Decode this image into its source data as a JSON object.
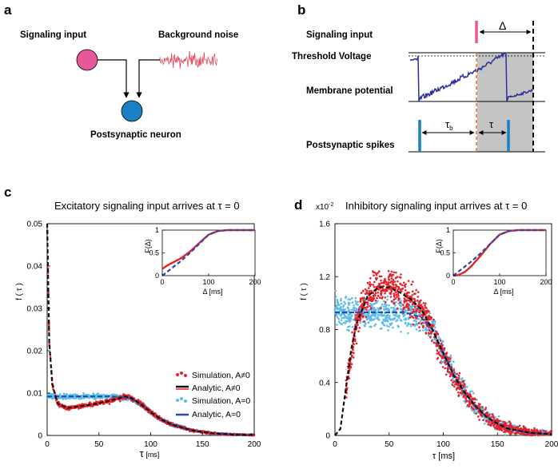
{
  "panel_a": {
    "letter": "a",
    "signaling_input": "Signaling input",
    "background_noise": "Background noise",
    "postsynaptic_neuron": "Postsynaptic neuron"
  },
  "panel_b": {
    "letter": "b",
    "signaling_input": "Signaling input",
    "threshold_voltage": "Threshold Voltage",
    "membrane_potential": "Membrane potential",
    "postsynaptic_spikes": "Postsynaptic spikes",
    "delta": "Δ",
    "tau": "τ",
    "tau_b_main": "τ",
    "tau_b_sub": "b"
  },
  "colors": {
    "pink": "#e8579a",
    "blue": "#1a7fc4",
    "noise_red": "#e8334a",
    "trace": "#2b2f9a",
    "shade": "#c4c4c4",
    "orange": "#f07020",
    "sim_red": "#e8202a",
    "sim_cyan": "#5bbde8",
    "analytic_blue": "#2a4aa8"
  },
  "panel_c": {
    "letter": "c",
    "title": "Excitatory signaling input arrives at τ = 0",
    "ylabel": "f ( τ )",
    "xlabel_main": "τ",
    "xlabel_unit": " [ms]",
    "yticks": [
      "0.05",
      "0.04",
      "0.03",
      "0.02",
      "0.01",
      "0"
    ],
    "xticks": [
      "0",
      "50",
      "100",
      "150",
      "200"
    ],
    "legend": [
      "Simulation, A≠0",
      "Analytic, A≠0",
      "Simulation, A=0",
      "Analytic, A=0"
    ],
    "inset": {
      "ylabel": "F(Δ)",
      "xlabel": "Δ [ms]",
      "yticks": [
        "1",
        "0.5",
        "0"
      ],
      "xticks": [
        "0",
        "100",
        "200"
      ]
    }
  },
  "panel_d": {
    "letter": "d",
    "scale": "x10",
    "scale_exp": "-2",
    "title": "Inhibitory signaling input arrives at τ = 0",
    "ylabel": "f ( τ )",
    "xlabel": "τ [ms]",
    "yticks": [
      "1.6",
      "1.2",
      "0.8",
      "0.4",
      "0"
    ],
    "xticks": [
      "0",
      "50",
      "100",
      "150",
      "200"
    ],
    "inset": {
      "ylabel": "F(Δ)",
      "xlabel": "Δ [ms]",
      "yticks": [
        "1",
        "0.5",
        "0"
      ],
      "xticks": [
        "0",
        "100",
        "200"
      ]
    }
  },
  "chart_data": [
    {
      "type": "scatter",
      "title": "Excitatory signaling input arrives at τ = 0",
      "xlabel": "τ [ms]",
      "ylabel": "f ( τ )",
      "xlim": [
        0,
        200
      ],
      "ylim": [
        0,
        0.05
      ],
      "series": [
        {
          "name": "Simulation, A≠0",
          "kind": "scatter",
          "x": [
            0,
            2,
            5,
            10,
            20,
            30,
            40,
            50,
            60,
            70,
            75,
            80,
            90,
            100,
            110,
            120,
            140,
            160,
            180,
            200
          ],
          "y": [
            0.05,
            0.022,
            0.012,
            0.0075,
            0.0065,
            0.0068,
            0.0072,
            0.0076,
            0.0082,
            0.0088,
            0.0092,
            0.009,
            0.0075,
            0.0055,
            0.0038,
            0.0026,
            0.0012,
            0.0005,
            0.0002,
            0.0001
          ]
        },
        {
          "name": "Analytic, A≠0",
          "kind": "line",
          "x": [
            0,
            2,
            5,
            10,
            20,
            30,
            40,
            50,
            60,
            70,
            75,
            80,
            90,
            100,
            110,
            120,
            140,
            160,
            180,
            200
          ],
          "y": [
            0.05,
            0.022,
            0.012,
            0.0075,
            0.0065,
            0.0068,
            0.0072,
            0.0076,
            0.0082,
            0.0088,
            0.0092,
            0.009,
            0.0075,
            0.0055,
            0.0038,
            0.0026,
            0.0012,
            0.0005,
            0.0002,
            0.0001
          ]
        },
        {
          "name": "Simulation, A=0",
          "kind": "scatter",
          "x": [
            0,
            10,
            20,
            30,
            40,
            50,
            60,
            70,
            80,
            90,
            100,
            110,
            120,
            140,
            160,
            180,
            200
          ],
          "y": [
            0.0092,
            0.0092,
            0.0092,
            0.0092,
            0.0092,
            0.0092,
            0.0092,
            0.0091,
            0.0088,
            0.0075,
            0.0055,
            0.0038,
            0.0026,
            0.0012,
            0.0005,
            0.0002,
            0.0001
          ]
        },
        {
          "name": "Analytic, A=0",
          "kind": "line",
          "x": [
            0,
            10,
            20,
            30,
            40,
            50,
            60,
            70,
            80,
            90,
            100,
            110,
            120,
            140,
            160,
            180,
            200
          ],
          "y": [
            0.0092,
            0.0092,
            0.0092,
            0.0092,
            0.0092,
            0.0092,
            0.0092,
            0.0091,
            0.0088,
            0.0075,
            0.0055,
            0.0038,
            0.0026,
            0.0012,
            0.0005,
            0.0002,
            0.0001
          ]
        }
      ],
      "inset": {
        "type": "line",
        "xlabel": "Δ [ms]",
        "ylabel": "F(Δ)",
        "xlim": [
          0,
          200
        ],
        "ylim": [
          0,
          1
        ],
        "series": [
          {
            "name": "A≠0",
            "x": [
              0,
              10,
              25,
              40,
              60,
              80,
              100,
              120,
              140,
              200
            ],
            "y": [
              0.15,
              0.22,
              0.3,
              0.38,
              0.53,
              0.72,
              0.9,
              0.98,
              1.0,
              1.0
            ]
          },
          {
            "name": "A=0",
            "x": [
              0,
              10,
              25,
              40,
              60,
              80,
              100,
              120,
              140,
              200
            ],
            "y": [
              0.0,
              0.08,
              0.2,
              0.32,
              0.5,
              0.7,
              0.9,
              0.98,
              1.0,
              1.0
            ]
          }
        ]
      }
    },
    {
      "type": "scatter",
      "title": "Inhibitory signaling input arrives at τ = 0",
      "xlabel": "τ [ms]",
      "ylabel": "f ( τ ) (x10^-2)",
      "xlim": [
        0,
        200
      ],
      "ylim": [
        0,
        1.6
      ],
      "series": [
        {
          "name": "Simulation, A≠0",
          "kind": "scatter",
          "x": [
            10,
            20,
            30,
            40,
            50,
            60,
            70,
            80,
            90,
            100,
            110,
            120,
            130,
            140,
            150,
            160,
            180,
            200
          ],
          "y": [
            0.35,
            0.85,
            1.05,
            1.12,
            1.12,
            1.08,
            1.03,
            0.95,
            0.8,
            0.62,
            0.45,
            0.32,
            0.22,
            0.14,
            0.09,
            0.05,
            0.02,
            0.01
          ]
        },
        {
          "name": "Analytic, A≠0",
          "kind": "line",
          "x": [
            0,
            5,
            10,
            15,
            20,
            30,
            40,
            50,
            60,
            70,
            80,
            90,
            100,
            110,
            120,
            130,
            140,
            150,
            160,
            180,
            200
          ],
          "y": [
            0.0,
            0.05,
            0.35,
            0.65,
            0.85,
            1.05,
            1.12,
            1.12,
            1.08,
            1.03,
            0.95,
            0.8,
            0.62,
            0.45,
            0.32,
            0.22,
            0.14,
            0.09,
            0.05,
            0.02,
            0.01
          ]
        },
        {
          "name": "Simulation, A=0",
          "kind": "scatter",
          "x": [
            0,
            10,
            20,
            30,
            40,
            50,
            60,
            70,
            80,
            90,
            100,
            110,
            120,
            130,
            140,
            150,
            160,
            180,
            200
          ],
          "y": [
            0.93,
            0.93,
            0.93,
            0.93,
            0.93,
            0.93,
            0.93,
            0.92,
            0.89,
            0.8,
            0.62,
            0.45,
            0.32,
            0.22,
            0.14,
            0.09,
            0.05,
            0.02,
            0.01
          ]
        },
        {
          "name": "Analytic, A=0",
          "kind": "line",
          "x": [
            0,
            10,
            20,
            30,
            40,
            50,
            60,
            70,
            80,
            90,
            100,
            110,
            120,
            130,
            140,
            150,
            160,
            180,
            200
          ],
          "y": [
            0.93,
            0.93,
            0.93,
            0.93,
            0.93,
            0.93,
            0.93,
            0.92,
            0.89,
            0.8,
            0.62,
            0.45,
            0.32,
            0.22,
            0.14,
            0.09,
            0.05,
            0.02,
            0.01
          ]
        }
      ],
      "inset": {
        "type": "line",
        "xlabel": "Δ [ms]",
        "ylabel": "F(Δ)",
        "xlim": [
          0,
          200
        ],
        "ylim": [
          0,
          1
        ],
        "series": [
          {
            "name": "A≠0",
            "x": [
              0,
              10,
              25,
              40,
              60,
              80,
              100,
              120,
              140,
              200
            ],
            "y": [
              0.0,
              0.01,
              0.08,
              0.22,
              0.45,
              0.7,
              0.9,
              0.98,
              1.0,
              1.0
            ]
          },
          {
            "name": "A=0",
            "x": [
              0,
              10,
              25,
              40,
              60,
              80,
              100,
              120,
              140,
              200
            ],
            "y": [
              0.0,
              0.08,
              0.2,
              0.32,
              0.5,
              0.7,
              0.9,
              0.98,
              1.0,
              1.0
            ]
          }
        ]
      }
    }
  ]
}
